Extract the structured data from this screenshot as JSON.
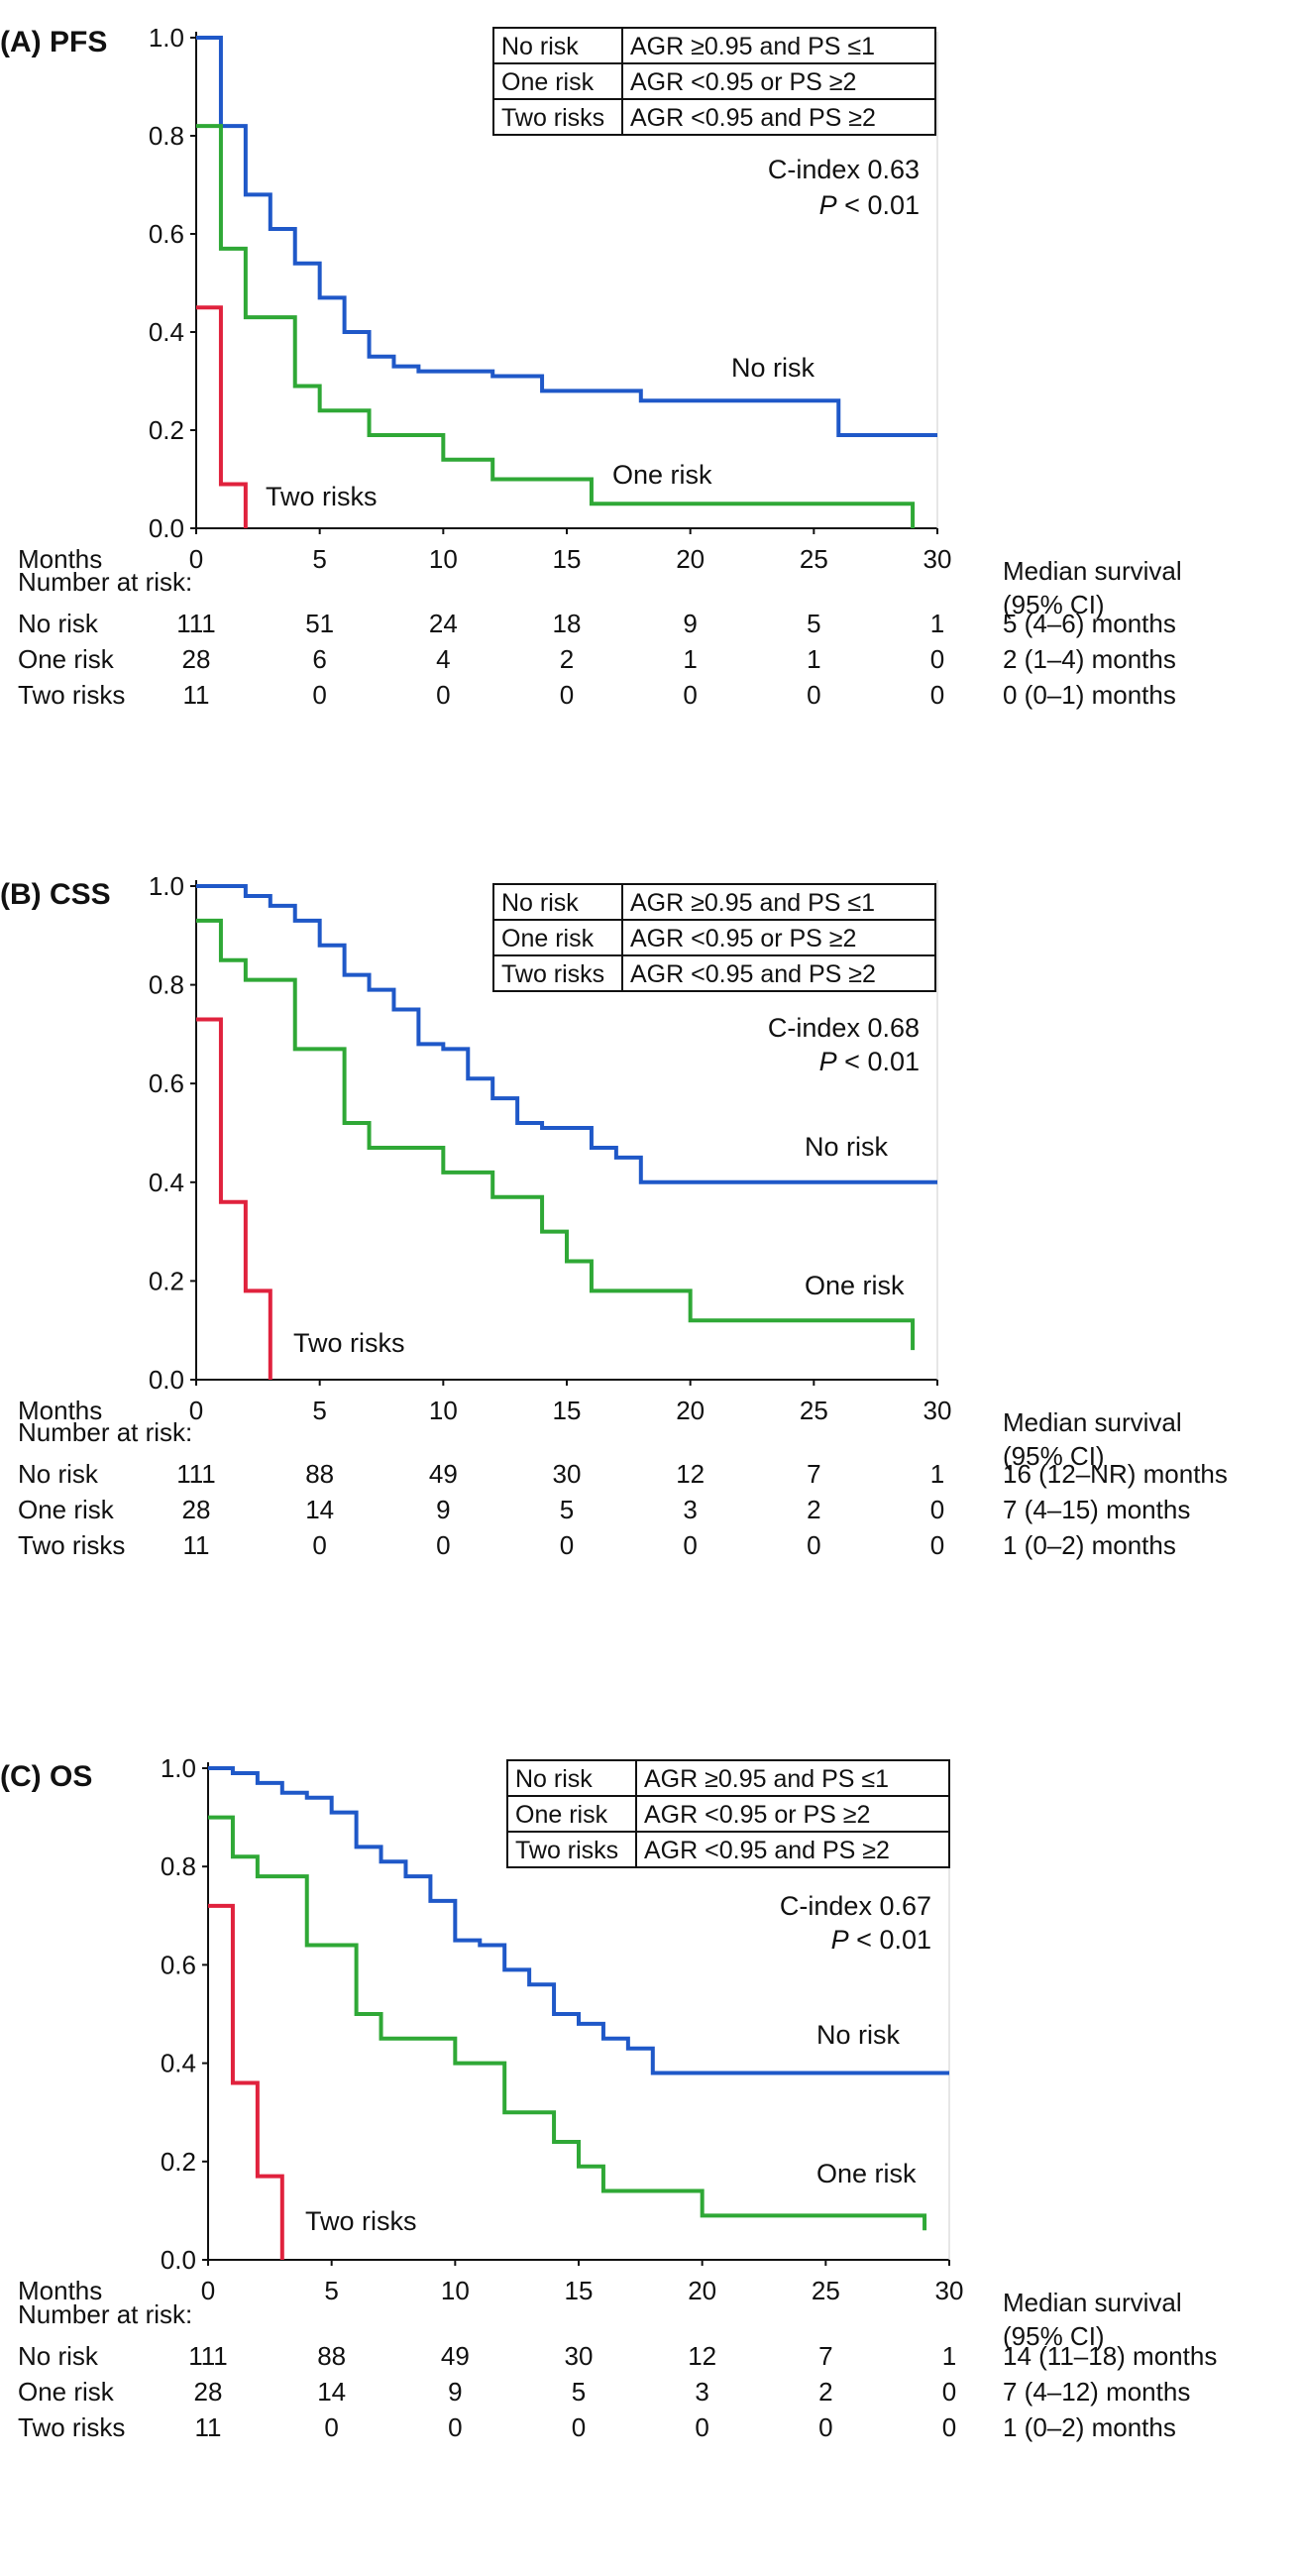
{
  "figure": {
    "colors": {
      "no_risk": "#1f58c8",
      "one_risk": "#2fa836",
      "two_risks": "#e0223d",
      "axis": "#111111"
    }
  },
  "chart_data": [
    {
      "type": "line",
      "panel_label": "(A) PFS",
      "xlabel": "Months",
      "xlim": [
        0,
        30
      ],
      "ylim": [
        0,
        1
      ],
      "x_ticks": [
        "0",
        "5",
        "10",
        "15",
        "20",
        "25",
        "30"
      ],
      "y_ticks": [
        "0.0",
        "0.2",
        "0.4",
        "0.6",
        "0.8",
        "1.0"
      ],
      "legend_table": [
        [
          "No risk",
          "AGR ≥0.95 and PS ≤1"
        ],
        [
          "One risk",
          "AGR <0.95  or  PS ≥2"
        ],
        [
          "Two risks",
          "AGR <0.95 and PS ≥2"
        ]
      ],
      "c_index": "C-index 0.63",
      "p_value": {
        "symbol": "P",
        "rest": " < 0.01"
      },
      "series": [
        {
          "name": "No risk",
          "color_key": "no_risk",
          "steps": [
            [
              0,
              1
            ],
            [
              1,
              0.82
            ],
            [
              2,
              0.68
            ],
            [
              3,
              0.61
            ],
            [
              4,
              0.54
            ],
            [
              5,
              0.47
            ],
            [
              6,
              0.4
            ],
            [
              7,
              0.35
            ],
            [
              8,
              0.33
            ],
            [
              9,
              0.32
            ],
            [
              12,
              0.31
            ],
            [
              14,
              0.28
            ],
            [
              18,
              0.26
            ],
            [
              26,
              0.19
            ],
            [
              30,
              0.19
            ]
          ]
        },
        {
          "name": "One risk",
          "color_key": "one_risk",
          "steps": [
            [
              0,
              0.82
            ],
            [
              1,
              0.57
            ],
            [
              2,
              0.43
            ],
            [
              4,
              0.29
            ],
            [
              5,
              0.24
            ],
            [
              7,
              0.19
            ],
            [
              10,
              0.14
            ],
            [
              12,
              0.1
            ],
            [
              16,
              0.05
            ],
            [
              29,
              0.0
            ]
          ]
        },
        {
          "name": "Two risks",
          "color_key": "two_risks",
          "steps": [
            [
              0,
              0.45
            ],
            [
              1,
              0.09
            ],
            [
              2,
              0.0
            ]
          ]
        }
      ],
      "curve_labels": [
        "No risk",
        "One risk",
        "Two risks"
      ],
      "risk_table": {
        "header": "Number at risk:",
        "median_header": [
          "Median survival",
          "(95% CI)"
        ],
        "rows": [
          {
            "label": "No risk",
            "values": [
              "111",
              "51",
              "24",
              "18",
              "9",
              "5",
              "1"
            ],
            "median": "5 (4–6) months"
          },
          {
            "label": "One risk",
            "values": [
              "28",
              "6",
              "4",
              "2",
              "1",
              "1",
              "0"
            ],
            "median": "2 (1–4) months"
          },
          {
            "label": "Two risks",
            "values": [
              "11",
              "0",
              "0",
              "0",
              "0",
              "0",
              "0"
            ],
            "median": "0 (0–1) months"
          }
        ]
      }
    },
    {
      "type": "line",
      "panel_label": "(B) CSS",
      "xlabel": "Months",
      "xlim": [
        0,
        30
      ],
      "ylim": [
        0,
        1
      ],
      "x_ticks": [
        "0",
        "5",
        "10",
        "15",
        "20",
        "25",
        "30"
      ],
      "y_ticks": [
        "0.0",
        "0.2",
        "0.4",
        "0.6",
        "0.8",
        "1.0"
      ],
      "legend_table": [
        [
          "No risk",
          "AGR ≥0.95 and PS ≤1"
        ],
        [
          "One risk",
          "AGR <0.95  or  PS ≥2"
        ],
        [
          "Two risks",
          "AGR <0.95 and PS ≥2"
        ]
      ],
      "c_index": "C-index 0.68",
      "p_value": {
        "symbol": "P",
        "rest": " < 0.01"
      },
      "series": [
        {
          "name": "No risk",
          "color_key": "no_risk",
          "steps": [
            [
              0,
              1
            ],
            [
              2,
              0.98
            ],
            [
              3,
              0.96
            ],
            [
              4,
              0.93
            ],
            [
              5,
              0.88
            ],
            [
              6,
              0.82
            ],
            [
              7,
              0.79
            ],
            [
              8,
              0.75
            ],
            [
              9,
              0.68
            ],
            [
              10,
              0.67
            ],
            [
              11,
              0.61
            ],
            [
              12,
              0.57
            ],
            [
              13,
              0.52
            ],
            [
              14,
              0.51
            ],
            [
              16,
              0.47
            ],
            [
              17,
              0.45
            ],
            [
              18,
              0.4
            ],
            [
              30,
              0.4
            ]
          ]
        },
        {
          "name": "One risk",
          "color_key": "one_risk",
          "steps": [
            [
              0,
              0.93
            ],
            [
              1,
              0.85
            ],
            [
              2,
              0.81
            ],
            [
              4,
              0.67
            ],
            [
              6,
              0.52
            ],
            [
              7,
              0.47
            ],
            [
              10,
              0.42
            ],
            [
              12,
              0.37
            ],
            [
              14,
              0.3
            ],
            [
              15,
              0.24
            ],
            [
              16,
              0.18
            ],
            [
              20,
              0.12
            ],
            [
              29,
              0.06
            ]
          ]
        },
        {
          "name": "Two risks",
          "color_key": "two_risks",
          "steps": [
            [
              0,
              0.73
            ],
            [
              1,
              0.36
            ],
            [
              2,
              0.18
            ],
            [
              3,
              0.0
            ]
          ]
        }
      ],
      "curve_labels": [
        "No risk",
        "One risk",
        "Two risks"
      ],
      "risk_table": {
        "header": "Number at risk:",
        "median_header": [
          "Median survival",
          "(95% CI)"
        ],
        "rows": [
          {
            "label": "No risk",
            "values": [
              "111",
              "88",
              "49",
              "30",
              "12",
              "7",
              "1"
            ],
            "median": "16 (12–NR) months"
          },
          {
            "label": "One risk",
            "values": [
              "28",
              "14",
              "9",
              "5",
              "3",
              "2",
              "0"
            ],
            "median": "7 (4–15) months"
          },
          {
            "label": "Two risks",
            "values": [
              "11",
              "0",
              "0",
              "0",
              "0",
              "0",
              "0"
            ],
            "median": "1 (0–2) months"
          }
        ]
      }
    },
    {
      "type": "line",
      "panel_label": "(C) OS",
      "xlabel": "Months",
      "xlim": [
        0,
        30
      ],
      "ylim": [
        0,
        1
      ],
      "x_ticks": [
        "0",
        "5",
        "10",
        "15",
        "20",
        "25",
        "30"
      ],
      "y_ticks": [
        "0.0",
        "0.2",
        "0.4",
        "0.6",
        "0.8",
        "1.0"
      ],
      "legend_table": [
        [
          "No risk",
          "AGR ≥0.95 and PS ≤1"
        ],
        [
          "One risk",
          "AGR <0.95  or  PS ≥2"
        ],
        [
          "Two risks",
          "AGR <0.95 and PS ≥2"
        ]
      ],
      "c_index": "C-index 0.67",
      "p_value": {
        "symbol": "P",
        "rest": " < 0.01"
      },
      "series": [
        {
          "name": "No risk",
          "color_key": "no_risk",
          "steps": [
            [
              0,
              1
            ],
            [
              1,
              0.99
            ],
            [
              2,
              0.97
            ],
            [
              3,
              0.95
            ],
            [
              4,
              0.94
            ],
            [
              5,
              0.91
            ],
            [
              6,
              0.84
            ],
            [
              7,
              0.81
            ],
            [
              8,
              0.78
            ],
            [
              9,
              0.73
            ],
            [
              10,
              0.65
            ],
            [
              11,
              0.64
            ],
            [
              12,
              0.59
            ],
            [
              13,
              0.56
            ],
            [
              14,
              0.5
            ],
            [
              15,
              0.48
            ],
            [
              16,
              0.45
            ],
            [
              17,
              0.43
            ],
            [
              18,
              0.38
            ],
            [
              30,
              0.38
            ]
          ]
        },
        {
          "name": "One risk",
          "color_key": "one_risk",
          "steps": [
            [
              0,
              0.9
            ],
            [
              1,
              0.82
            ],
            [
              2,
              0.78
            ],
            [
              4,
              0.64
            ],
            [
              6,
              0.5
            ],
            [
              7,
              0.45
            ],
            [
              10,
              0.4
            ],
            [
              12,
              0.3
            ],
            [
              14,
              0.24
            ],
            [
              15,
              0.19
            ],
            [
              16,
              0.14
            ],
            [
              20,
              0.09
            ],
            [
              29,
              0.06
            ]
          ]
        },
        {
          "name": "Two risks",
          "color_key": "two_risks",
          "steps": [
            [
              0,
              0.72
            ],
            [
              1,
              0.36
            ],
            [
              2,
              0.17
            ],
            [
              3,
              0.0
            ]
          ]
        }
      ],
      "curve_labels": [
        "No risk",
        "One risk",
        "Two risks"
      ],
      "risk_table": {
        "header": "Number at risk:",
        "median_header": [
          "Median survival",
          "(95% CI)"
        ],
        "rows": [
          {
            "label": "No risk",
            "values": [
              "111",
              "88",
              "49",
              "30",
              "12",
              "7",
              "1"
            ],
            "median": "14 (11–18) months"
          },
          {
            "label": "One risk",
            "values": [
              "28",
              "14",
              "9",
              "5",
              "3",
              "2",
              "0"
            ],
            "median": "7 (4–12) months"
          },
          {
            "label": "Two risks",
            "values": [
              "11",
              "0",
              "0",
              "0",
              "0",
              "0",
              "0"
            ],
            "median": "1 (0–2) months"
          }
        ]
      }
    }
  ]
}
